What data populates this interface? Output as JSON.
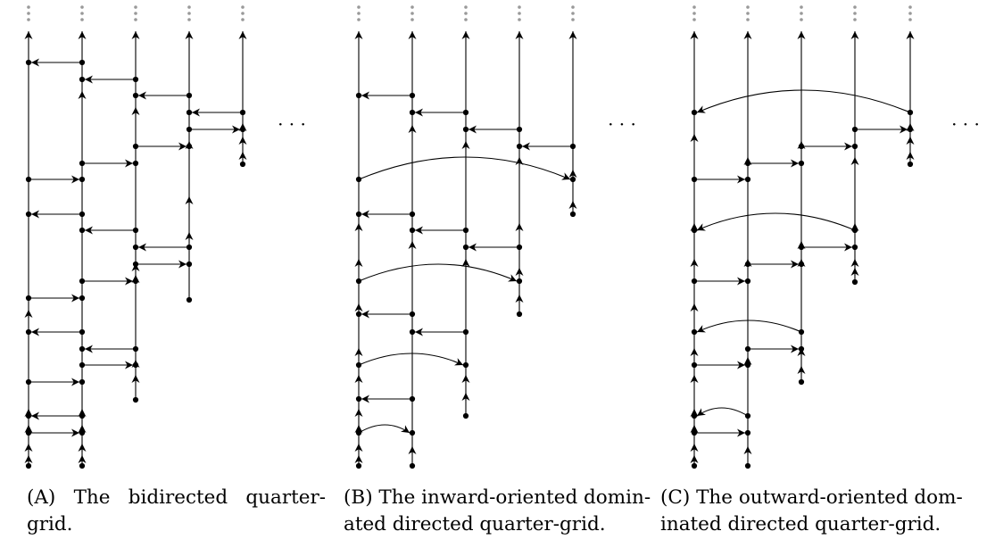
{
  "panels": [
    {
      "label": "(A)",
      "caption_first": "The bidirected quarter-",
      "caption_second": "grid."
    },
    {
      "label": "(B)",
      "caption_first": "The inward-oriented domin-",
      "caption_second": "ated directed quarter-grid."
    },
    {
      "label": "(C)",
      "caption_first": "The outward-oriented dom-",
      "caption_second": "inated directed quarter-grid."
    }
  ],
  "ellipsis": "· · ·",
  "colors": {
    "ink": "#000000",
    "dots": "#999999"
  }
}
